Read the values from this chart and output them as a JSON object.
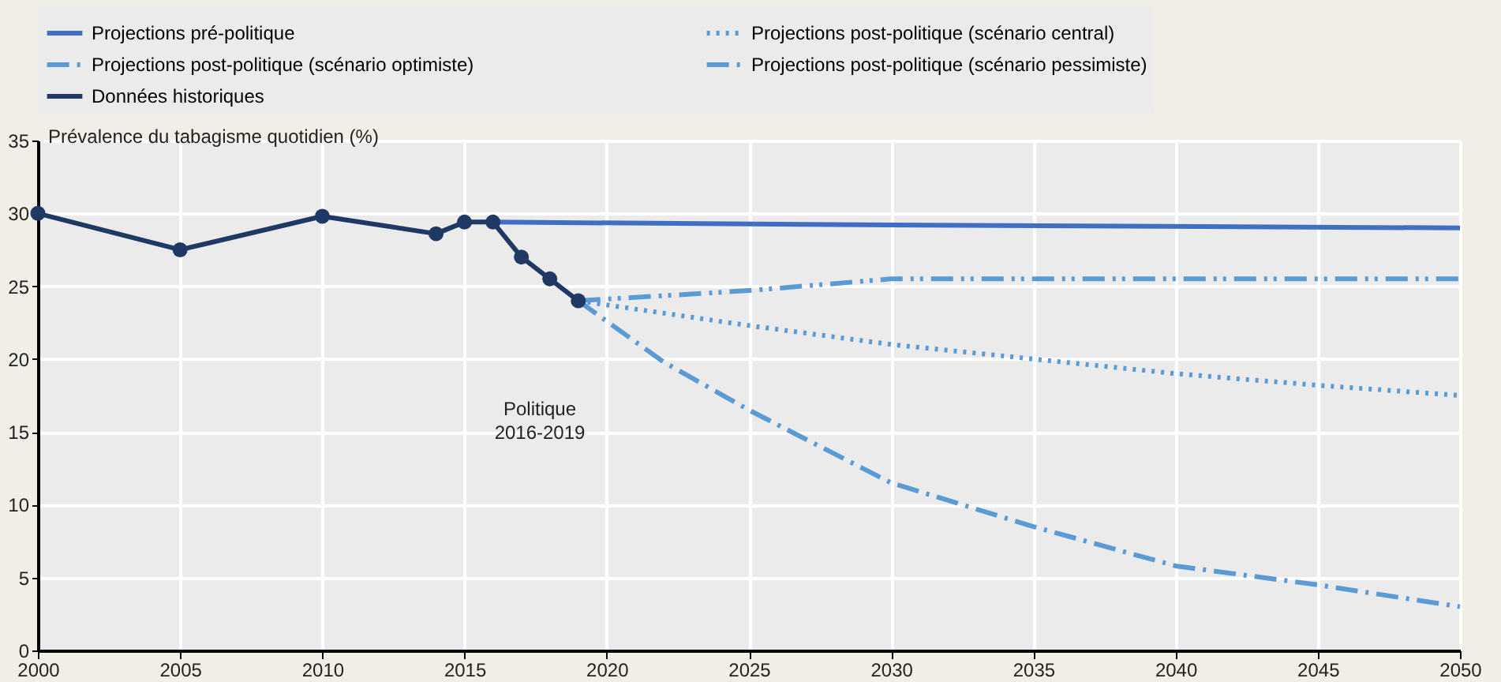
{
  "chart_data": {
    "type": "line",
    "ylabel": "Prévalence du tabagisme quotidien (%)",
    "xlim": [
      2000,
      2050
    ],
    "xticks": [
      2000,
      2005,
      2010,
      2015,
      2020,
      2025,
      2030,
      2035,
      2040,
      2045,
      2050
    ],
    "ylim": [
      0,
      35
    ],
    "yticks": [
      0,
      5,
      10,
      15,
      20,
      25,
      30,
      35
    ],
    "grid": true,
    "legend": "top",
    "annotations": [
      "Politique 2016-2019"
    ],
    "series": [
      {
        "name": "Projections pré-politique",
        "color": "#3f6fc2",
        "line_style": "solid",
        "marker": "none",
        "x": [
          2016,
          2030,
          2050
        ],
        "values": [
          29.4,
          29.2,
          29.0
        ]
      },
      {
        "name": "Projections post-politique (scénario central)",
        "color": "#5b9bd5",
        "line_style": "dotted",
        "marker": "none",
        "x": [
          2019,
          2025,
          2030,
          2035,
          2040,
          2045,
          2050
        ],
        "values": [
          24,
          22.3,
          21,
          20,
          19,
          18.2,
          17.5
        ]
      },
      {
        "name": "Projections post-politique (scénario optimiste)",
        "color": "#5b9bd5",
        "line_style": "dashed",
        "marker": "none",
        "x": [
          2019,
          2022,
          2025,
          2030,
          2035,
          2040,
          2045,
          2050
        ],
        "values": [
          24,
          19.8,
          16.5,
          11.5,
          8.5,
          5.8,
          4.5,
          3
        ]
      },
      {
        "name": "Projections post-politique (scénario pessimiste)",
        "color": "#5b9bd5",
        "line_style": "dashdot",
        "marker": "none",
        "x": [
          2019,
          2025,
          2030,
          2040,
          2050
        ],
        "values": [
          24,
          24.7,
          25.5,
          25.5,
          25.5
        ]
      },
      {
        "name": "Données historiques",
        "color": "#1f3864",
        "line_style": "solid",
        "marker": "circle",
        "x": [
          2000,
          2005,
          2010,
          2014,
          2015,
          2016,
          2017,
          2018,
          2019
        ],
        "values": [
          30,
          27.5,
          29.8,
          28.6,
          29.4,
          29.4,
          27,
          25.5,
          24
        ]
      }
    ]
  }
}
